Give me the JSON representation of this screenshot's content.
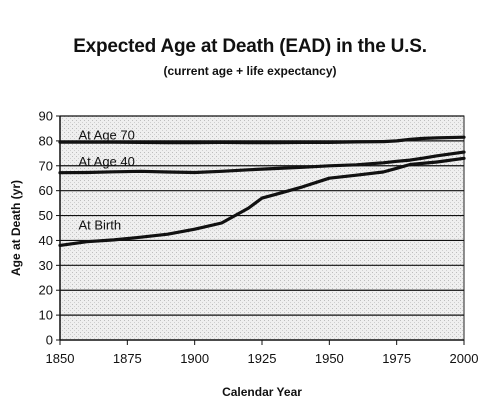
{
  "chart_data": {
    "type": "line",
    "title": "Expected Age at Death (EAD) in the U.S.",
    "subtitle": "(current age + life expectancy)",
    "xlabel": "Calendar Year",
    "ylabel": "Age at Death (yr)",
    "xlim": [
      1850,
      2000
    ],
    "ylim": [
      0,
      90
    ],
    "xticks": [
      1850,
      1875,
      1900,
      1925,
      1950,
      1975,
      2000
    ],
    "yticks": [
      0,
      10,
      20,
      30,
      40,
      50,
      60,
      70,
      80,
      90
    ],
    "grid": true,
    "series": [
      {
        "name": "At Age 70",
        "x": [
          1850,
          1860,
          1870,
          1880,
          1890,
          1900,
          1910,
          1920,
          1930,
          1940,
          1950,
          1960,
          1970,
          1975,
          1980,
          1985,
          1990,
          2000
        ],
        "y": [
          79.5,
          79.5,
          79.5,
          79.4,
          79.3,
          79.3,
          79.4,
          79.3,
          79.3,
          79.4,
          79.4,
          79.6,
          79.7,
          80.0,
          80.6,
          81.0,
          81.2,
          81.5
        ]
      },
      {
        "name": "At Age 40",
        "x": [
          1850,
          1860,
          1870,
          1880,
          1890,
          1900,
          1910,
          1920,
          1930,
          1940,
          1950,
          1960,
          1970,
          1975,
          1980,
          1985,
          1990,
          2000
        ],
        "y": [
          67.2,
          67.3,
          67.6,
          67.8,
          67.5,
          67.3,
          67.8,
          68.4,
          68.9,
          69.4,
          70.0,
          70.4,
          71.2,
          71.8,
          72.3,
          73.1,
          74.0,
          75.5
        ]
      },
      {
        "name": "At Birth",
        "x": [
          1850,
          1860,
          1870,
          1880,
          1890,
          1900,
          1910,
          1920,
          1925,
          1930,
          1940,
          1950,
          1960,
          1970,
          1975,
          1980,
          1990,
          2000
        ],
        "y": [
          38.0,
          39.5,
          40.2,
          41.3,
          42.5,
          44.5,
          47.0,
          53.0,
          57.0,
          58.5,
          61.5,
          65.0,
          66.2,
          67.5,
          69.0,
          70.5,
          71.5,
          73.0
        ]
      }
    ]
  }
}
